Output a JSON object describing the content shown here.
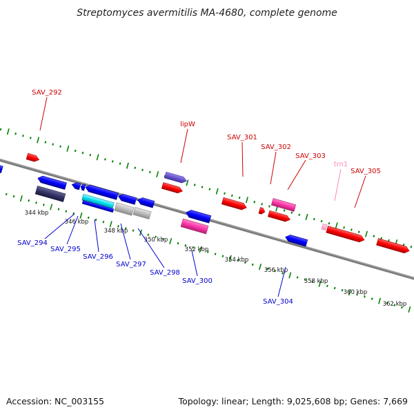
{
  "title": "Streptomyces avermitilis MA-4680, complete genome",
  "footer": {
    "accession": "Accession: NC_003155",
    "summary": "Topology: linear; Length: 9,025,608 bp; Genes: 7,669"
  },
  "colors": {
    "forward": "#ff0000",
    "forward_alt": "#ff33aa",
    "reverse": "#0000ff",
    "reverse_dark": "#333366",
    "reverse_purple": "#6655cc",
    "trna": "#ff99cc",
    "gray": "#bbbbbb",
    "cyan": "#00ddee",
    "axis": "#808080",
    "ticks": "#008000",
    "label_forward": "#cc0000",
    "label_reverse": "#0000cc",
    "label_trna": "#ff88bb"
  },
  "kbp_ticks": [
    "344 kbp",
    "346 kbp",
    "348 kbp",
    "350 kbp",
    "352 kbp",
    "354 kbp",
    "356 kbp",
    "358 kbp",
    "360 kbp",
    "362 kbp"
  ],
  "gene_labels": [
    {
      "name": "SAV_292",
      "strand": "forward"
    },
    {
      "name": "lipW",
      "strand": "forward"
    },
    {
      "name": "SAV_301",
      "strand": "forward"
    },
    {
      "name": "SAV_302",
      "strand": "forward"
    },
    {
      "name": "SAV_303",
      "strand": "forward"
    },
    {
      "name": "trn1",
      "strand": "trna"
    },
    {
      "name": "SAV_305",
      "strand": "forward"
    },
    {
      "name": "SAV_294",
      "strand": "reverse"
    },
    {
      "name": "SAV_295",
      "strand": "reverse"
    },
    {
      "name": "SAV_296",
      "strand": "reverse"
    },
    {
      "name": "SAV_297",
      "strand": "reverse"
    },
    {
      "name": "SAV_298",
      "strand": "reverse"
    },
    {
      "name": "SAV_300",
      "strand": "reverse"
    },
    {
      "name": "SAV_304",
      "strand": "reverse"
    }
  ]
}
